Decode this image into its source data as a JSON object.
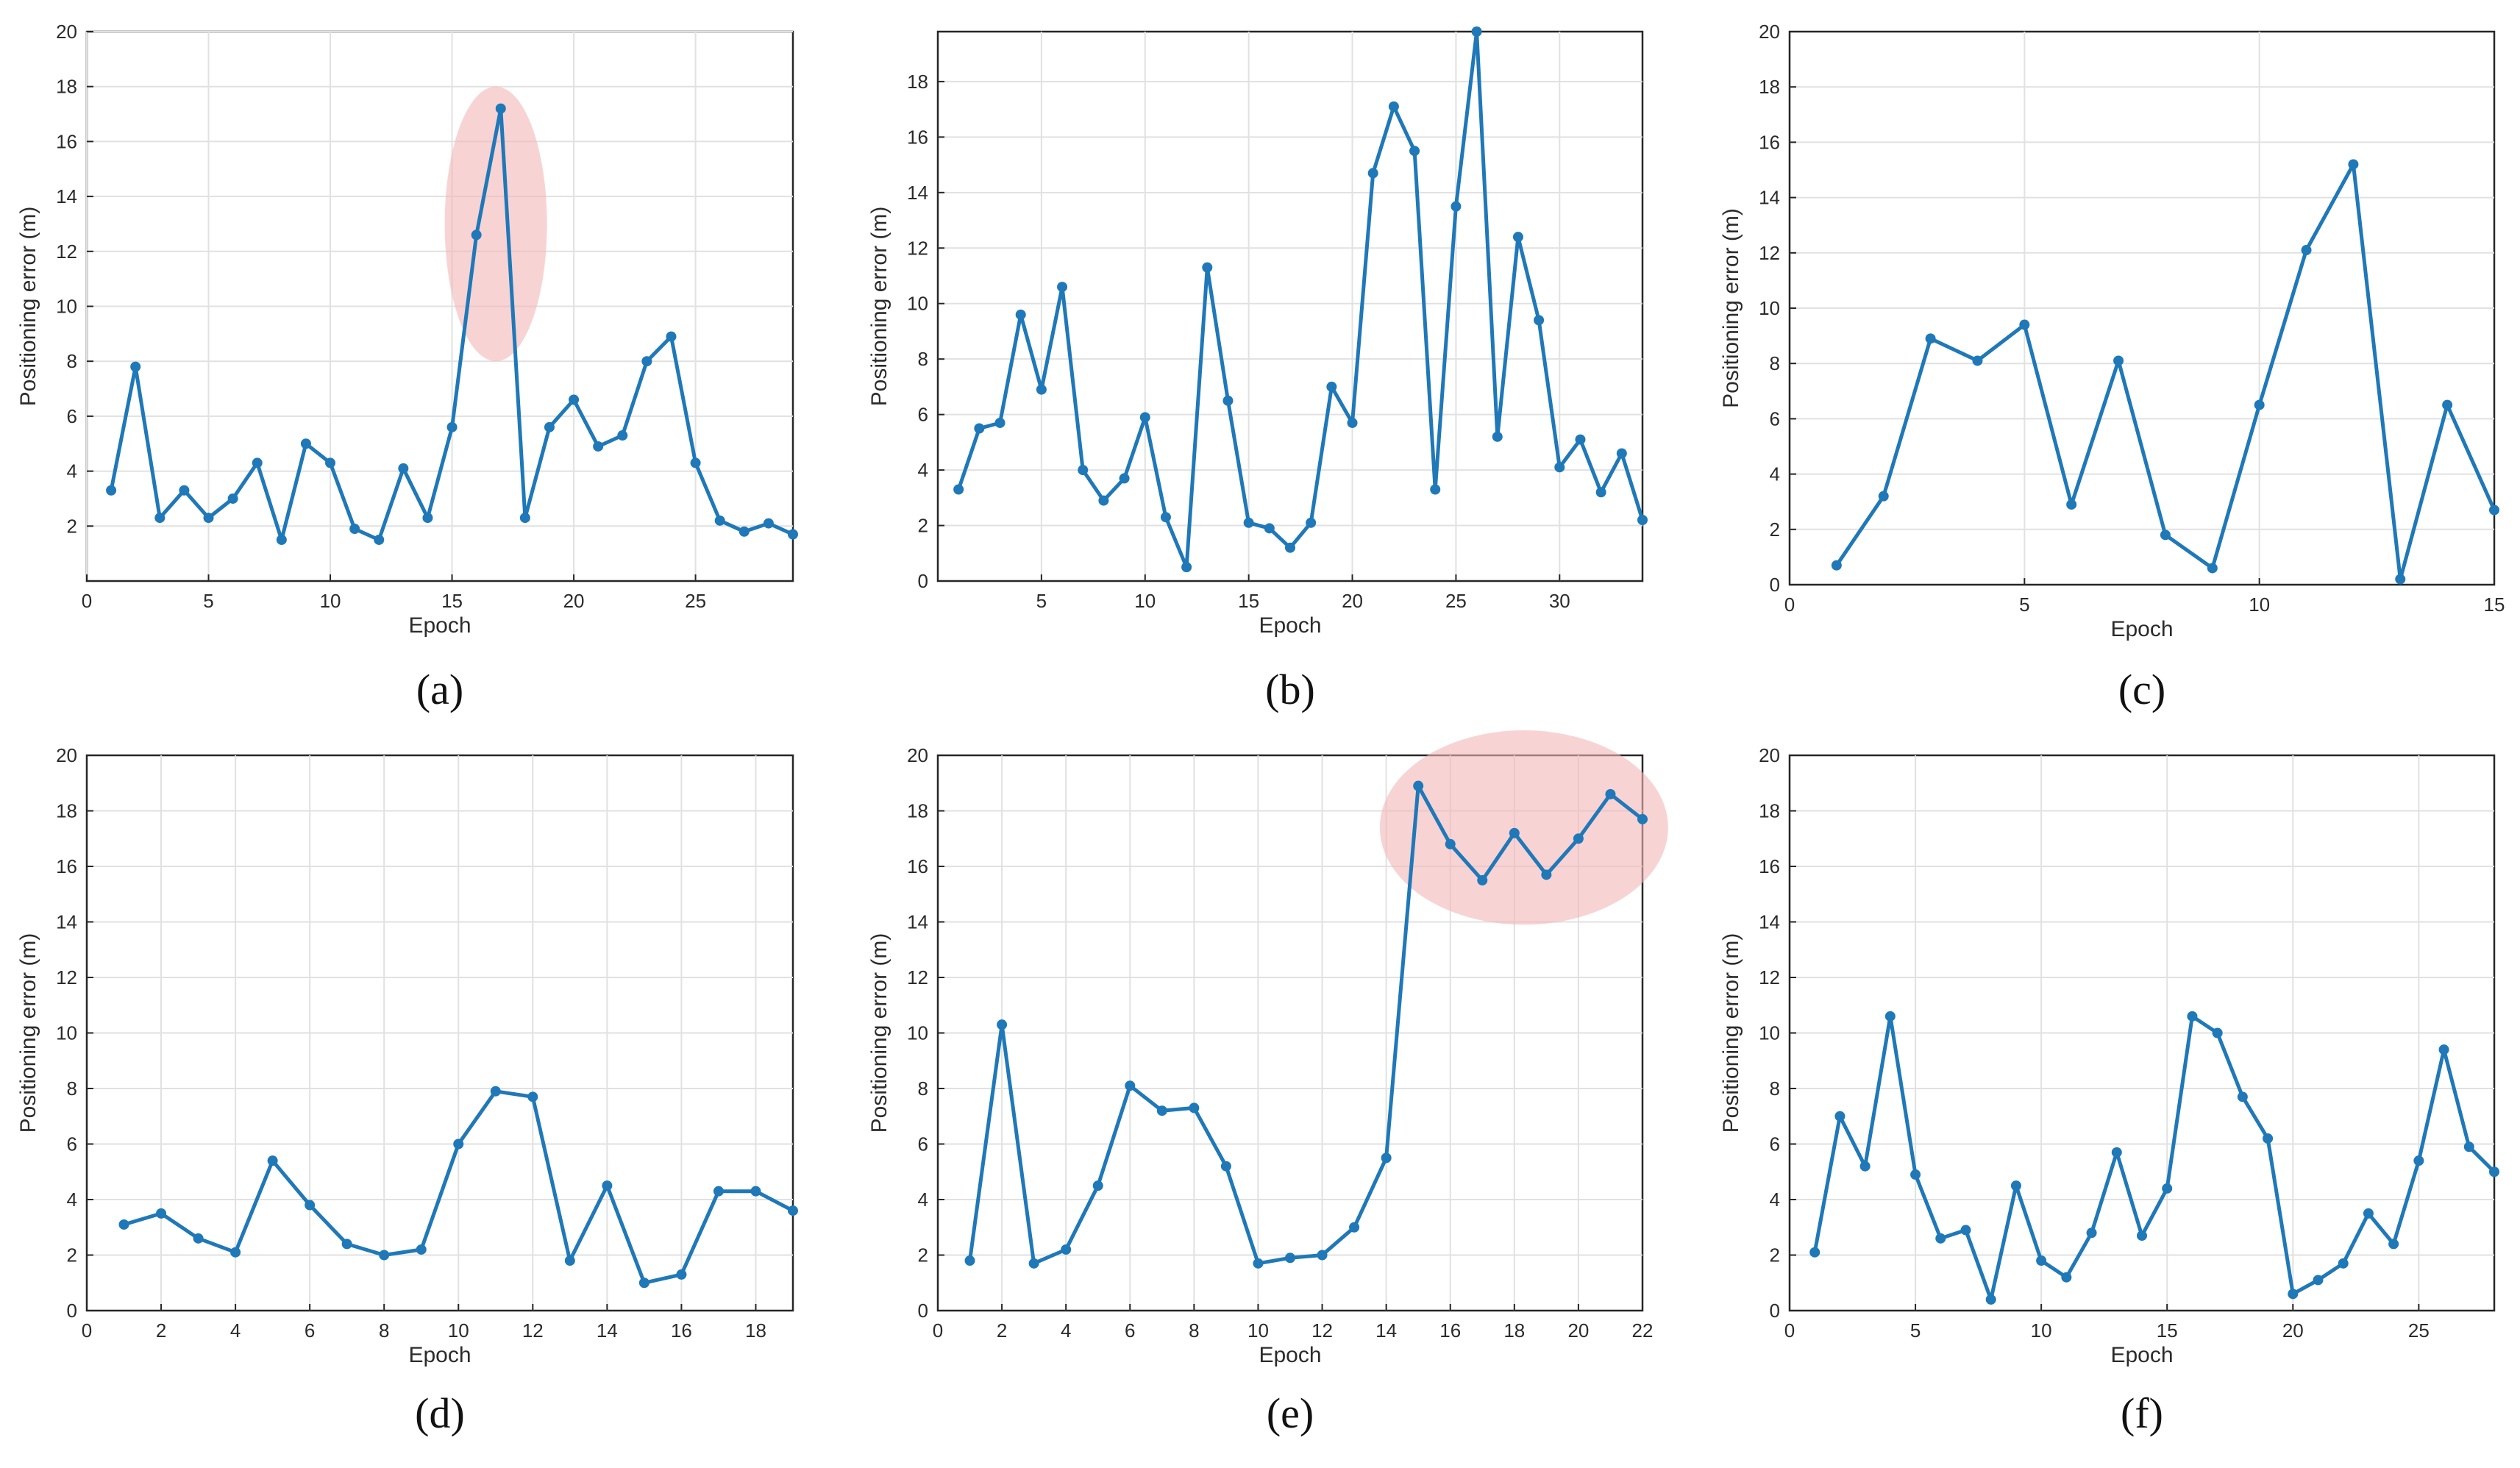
{
  "style": {
    "line_color": "#1f78b8",
    "highlight_color": "#f4b6b6",
    "grid_color": "#e1e1e1",
    "axis_color": "#262626"
  },
  "chart_data": [
    {
      "panel": "(a)",
      "type": "line",
      "xlabel": "Epoch",
      "ylabel": "Positioning error (m)",
      "xlim": [
        0,
        29
      ],
      "ylim": [
        0,
        20
      ],
      "xticks": [
        0,
        5,
        10,
        15,
        20,
        25
      ],
      "yticks": [
        2,
        4,
        6,
        8,
        10,
        12,
        14,
        16,
        18,
        20
      ],
      "xgrid": [
        0,
        5,
        10,
        15,
        20,
        25
      ],
      "ygrid": [
        2,
        4,
        6,
        8,
        10,
        12,
        14,
        16,
        18,
        20
      ],
      "grid": true,
      "x": [
        1,
        2,
        3,
        4,
        5,
        6,
        7,
        8,
        9,
        10,
        11,
        12,
        13,
        14,
        15,
        16,
        17,
        18,
        19,
        20,
        21,
        22,
        23,
        24,
        25,
        26,
        27,
        28,
        29
      ],
      "y": [
        3.3,
        7.8,
        2.3,
        3.3,
        2.3,
        3.0,
        4.3,
        1.5,
        5.0,
        4.3,
        1.9,
        1.5,
        4.1,
        2.3,
        5.6,
        12.6,
        17.2,
        2.3,
        5.6,
        6.6,
        4.9,
        5.3,
        8.0,
        8.9,
        4.3,
        2.2,
        1.8,
        2.1,
        1.7
      ],
      "highlight": {
        "cx": 16.8,
        "cy": 13.0,
        "rx": 2.1,
        "ry": 5.0
      }
    },
    {
      "panel": "(b)",
      "type": "line",
      "xlabel": "Epoch",
      "ylabel": "Positioning error (m)",
      "xlim": [
        0,
        34
      ],
      "ylim": [
        0,
        19.8
      ],
      "xticks": [
        5,
        10,
        15,
        20,
        25,
        30
      ],
      "yticks": [
        0,
        2,
        4,
        6,
        8,
        10,
        12,
        14,
        16,
        18
      ],
      "xgrid": [
        5,
        10,
        15,
        20,
        25,
        30
      ],
      "ygrid": [
        2,
        4,
        6,
        8,
        10,
        12,
        14,
        16,
        18
      ],
      "grid": true,
      "x": [
        1,
        2,
        3,
        4,
        5,
        6,
        7,
        8,
        9,
        10,
        11,
        12,
        13,
        14,
        15,
        16,
        17,
        18,
        19,
        20,
        21,
        22,
        23,
        24,
        25,
        26,
        27,
        28,
        29,
        30,
        31,
        32,
        33,
        34
      ],
      "y": [
        3.3,
        5.5,
        5.7,
        9.6,
        6.9,
        10.6,
        4.0,
        2.9,
        3.7,
        5.9,
        2.3,
        0.5,
        11.3,
        6.5,
        2.1,
        1.9,
        1.2,
        2.1,
        7.0,
        5.7,
        14.7,
        17.1,
        15.5,
        3.3,
        13.5,
        19.8,
        5.2,
        12.4,
        9.4,
        4.1,
        5.1,
        3.2,
        4.6,
        2.2
      ]
    },
    {
      "panel": "(c)",
      "type": "line",
      "xlabel": "Epoch",
      "ylabel": "Positioning error (m)",
      "xlim": [
        0,
        15
      ],
      "ylim": [
        0,
        20
      ],
      "xticks": [
        0,
        5,
        10,
        15
      ],
      "yticks": [
        0,
        2,
        4,
        6,
        8,
        10,
        12,
        14,
        16,
        18,
        20
      ],
      "xgrid": [
        5,
        10
      ],
      "ygrid": [
        2,
        4,
        6,
        8,
        10,
        12,
        14,
        16,
        18
      ],
      "grid": true,
      "x": [
        1,
        2,
        3,
        4,
        5,
        6,
        7,
        8,
        9,
        10,
        11,
        12,
        13,
        14,
        15
      ],
      "y": [
        0.7,
        3.2,
        8.9,
        8.1,
        9.4,
        2.9,
        8.1,
        1.8,
        0.6,
        6.5,
        12.1,
        15.2,
        0.2,
        6.5,
        2.7
      ]
    },
    {
      "panel": "(d)",
      "type": "line",
      "xlabel": "Epoch",
      "ylabel": "Positioning error (m)",
      "xlim": [
        0,
        19
      ],
      "ylim": [
        0,
        20
      ],
      "xticks": [
        0,
        2,
        4,
        6,
        8,
        10,
        12,
        14,
        16,
        18
      ],
      "yticks": [
        0,
        2,
        4,
        6,
        8,
        10,
        12,
        14,
        16,
        18,
        20
      ],
      "xgrid": [
        2,
        4,
        6,
        8,
        10,
        12,
        14,
        16,
        18
      ],
      "ygrid": [
        2,
        4,
        6,
        8,
        10,
        12,
        14,
        16,
        18
      ],
      "grid": true,
      "x": [
        1,
        2,
        3,
        4,
        5,
        6,
        7,
        8,
        9,
        10,
        11,
        12,
        13,
        14,
        15,
        16,
        17,
        18,
        19
      ],
      "y": [
        3.1,
        3.5,
        2.6,
        2.1,
        5.4,
        3.8,
        2.4,
        2.0,
        2.2,
        6.0,
        7.9,
        7.7,
        1.8,
        4.5,
        1.0,
        1.3,
        4.3,
        4.3,
        3.6
      ]
    },
    {
      "panel": "(e)",
      "type": "line",
      "xlabel": "Epoch",
      "ylabel": "Positioning error (m)",
      "xlim": [
        0,
        22
      ],
      "ylim": [
        0,
        20
      ],
      "xticks": [
        0,
        2,
        4,
        6,
        8,
        10,
        12,
        14,
        16,
        18,
        20,
        22
      ],
      "yticks": [
        0,
        2,
        4,
        6,
        8,
        10,
        12,
        14,
        16,
        18,
        20
      ],
      "xgrid": [
        2,
        4,
        6,
        8,
        10,
        12,
        14,
        16,
        18,
        20
      ],
      "ygrid": [
        2,
        4,
        6,
        8,
        10,
        12,
        14,
        16,
        18
      ],
      "grid": true,
      "x": [
        1,
        2,
        3,
        4,
        5,
        6,
        7,
        8,
        9,
        10,
        11,
        12,
        13,
        14,
        15,
        16,
        17,
        18,
        19,
        20,
        21,
        22
      ],
      "y": [
        1.8,
        10.3,
        1.7,
        2.2,
        4.5,
        8.1,
        7.2,
        7.3,
        5.2,
        1.7,
        1.9,
        2.0,
        3.0,
        5.5,
        18.9,
        16.8,
        15.5,
        17.2,
        15.7,
        17.0,
        18.6,
        17.7
      ],
      "highlight": {
        "cx": 18.3,
        "cy": 17.4,
        "rx": 4.5,
        "ry": 3.5
      }
    },
    {
      "panel": "(f)",
      "type": "line",
      "xlabel": "Epoch",
      "ylabel": "Positioning error (m)",
      "xlim": [
        0,
        28
      ],
      "ylim": [
        0,
        20
      ],
      "xticks": [
        0,
        5,
        10,
        15,
        20,
        25
      ],
      "yticks": [
        0,
        2,
        4,
        6,
        8,
        10,
        12,
        14,
        16,
        18,
        20
      ],
      "xgrid": [
        5,
        10,
        15,
        20,
        25
      ],
      "ygrid": [
        2,
        4,
        6,
        8,
        10,
        12,
        14,
        16,
        18
      ],
      "grid": true,
      "x": [
        1,
        2,
        3,
        4,
        5,
        6,
        7,
        8,
        9,
        10,
        11,
        12,
        13,
        14,
        15,
        16,
        17,
        18,
        19,
        20,
        21,
        22,
        23,
        24,
        25,
        26,
        27,
        28
      ],
      "y": [
        2.1,
        7.0,
        5.2,
        10.6,
        4.9,
        2.6,
        2.9,
        0.4,
        4.5,
        1.8,
        1.2,
        2.8,
        5.7,
        2.7,
        4.4,
        10.6,
        10.0,
        7.7,
        6.2,
        0.6,
        1.1,
        1.7,
        3.5,
        2.4,
        5.4,
        9.4,
        5.9,
        5.0
      ]
    }
  ]
}
